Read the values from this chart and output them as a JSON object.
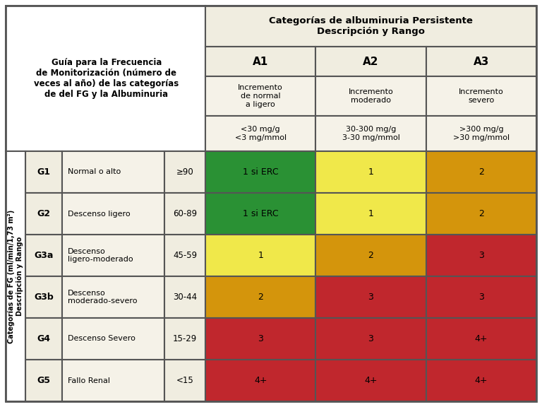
{
  "title_left": "Guía para la Frecuencia\nde Monitorización (número de\nveces al año) de las categorías\nde del FG y la Albuminuria",
  "top_header": "Categorías de albuminuria Persistente\nDescripción y Rango",
  "col_headers": [
    "A1",
    "A2",
    "A3"
  ],
  "col_desc": [
    "Incremento\nde normal\na ligero",
    "Incremento\nmoderado",
    "Incremento\nsevero"
  ],
  "col_range": [
    "<30 mg/g\n<3 mg/mmol",
    "30-300 mg/g\n3-30 mg/mmol",
    ">300 mg/g\n>30 mg/mmol"
  ],
  "row_labels": [
    "G1",
    "G2",
    "G3a",
    "G3b",
    "G4",
    "G5"
  ],
  "row_desc": [
    "Normal o alto",
    "Descenso ligero",
    "Descenso\nligero-moderado",
    "Descenso\nmoderado-severo",
    "Descenso Severo",
    "Fallo Renal"
  ],
  "row_range": [
    "≥90",
    "60-89",
    "45-59",
    "30-44",
    "15-29",
    "<15"
  ],
  "ylabel": "Categorías de FG (ml/min/1,73 m²)\nDescripción y Rango",
  "cell_values": [
    [
      "1 si ERC",
      "1",
      "2"
    ],
    [
      "1 si ERC",
      "1",
      "2"
    ],
    [
      "1",
      "2",
      "3"
    ],
    [
      "2",
      "3",
      "3"
    ],
    [
      "3",
      "3",
      "4+"
    ],
    [
      "4+",
      "4+",
      "4+"
    ]
  ],
  "cell_colors": [
    [
      "#2a9134",
      "#f0e84a",
      "#d4950c"
    ],
    [
      "#2a9134",
      "#f0e84a",
      "#d4950c"
    ],
    [
      "#f0e84a",
      "#d4950c",
      "#c0272d"
    ],
    [
      "#d4950c",
      "#c0272d",
      "#c0272d"
    ],
    [
      "#c0272d",
      "#c0272d",
      "#c0272d"
    ],
    [
      "#c0272d",
      "#c0272d",
      "#c0272d"
    ]
  ],
  "cell_text_colors": [
    [
      "#000000",
      "#000000",
      "#000000"
    ],
    [
      "#000000",
      "#000000",
      "#000000"
    ],
    [
      "#000000",
      "#000000",
      "#000000"
    ],
    [
      "#000000",
      "#000000",
      "#000000"
    ],
    [
      "#000000",
      "#000000",
      "#000000"
    ],
    [
      "#000000",
      "#000000",
      "#000000"
    ]
  ],
  "background_color": "#ffffff",
  "header_bg": "#f0ede0",
  "cell_light_bg": "#f5f2e8",
  "border_color": "#555555",
  "top_header_bg": "#f0ede0",
  "lw": 1.5
}
